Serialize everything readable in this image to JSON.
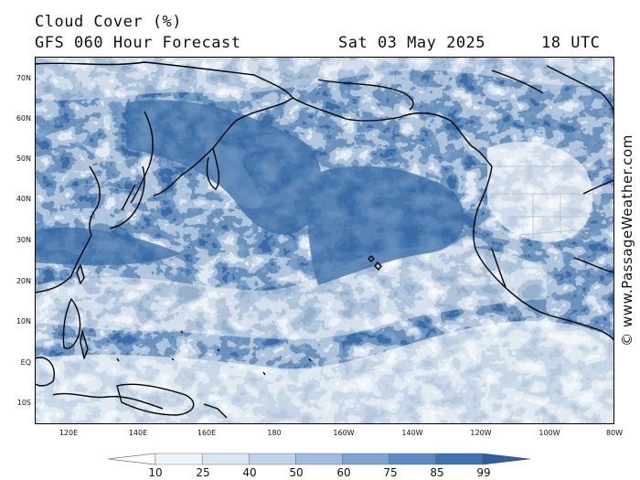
{
  "header": {
    "title": "Cloud Cover (%)",
    "subtitle": "GFS 060 Hour Forecast",
    "datetime": "Sat 03 May 2025",
    "utc": "18 UTC"
  },
  "map": {
    "lat_labels": [
      "70N",
      "60N",
      "50N",
      "40N",
      "30N",
      "20N",
      "10N",
      "EQ",
      "10S"
    ],
    "lon_labels": [
      "120E",
      "140E",
      "160E",
      "180",
      "160W",
      "140W",
      "120W",
      "100W",
      "80W"
    ],
    "colors": {
      "ocean_high": "#3b6ea8",
      "cloud_mid": "#8fb0d6",
      "cloud_light": "#dbe7f4",
      "clear": "#ffffff",
      "coast": "#000000",
      "border": "#b9b9b9"
    }
  },
  "credit": "© www.PassageWeather.com",
  "legend": {
    "labels": [
      "10",
      "25",
      "40",
      "50",
      "60",
      "75",
      "85",
      "99"
    ],
    "colors": [
      "#ffffff",
      "#eef4fb",
      "#d9e6f3",
      "#bfd3ea",
      "#9fbde0",
      "#7ea5d2",
      "#5c8bc2",
      "#3f72b2",
      "#2e5f9f"
    ]
  }
}
